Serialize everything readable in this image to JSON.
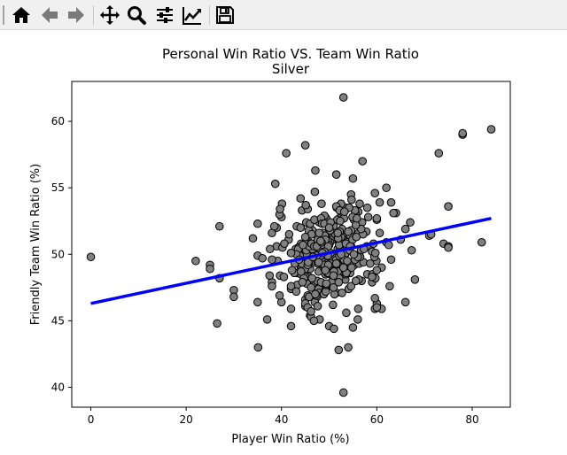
{
  "toolbar": {
    "buttons": [
      {
        "name": "home-button",
        "icon": "home-icon"
      },
      {
        "name": "back-button",
        "icon": "arrow-left-icon"
      },
      {
        "name": "forward-button",
        "icon": "arrow-right-icon"
      },
      {
        "name": "pan-button",
        "icon": "move-icon"
      },
      {
        "name": "zoom-button",
        "icon": "magnifier-icon"
      },
      {
        "name": "configure-subplots-button",
        "icon": "sliders-icon"
      },
      {
        "name": "edit-axis-button",
        "icon": "line-chart-icon"
      },
      {
        "name": "save-button",
        "icon": "floppy-disk-icon"
      }
    ]
  },
  "chart_data": {
    "type": "scatter",
    "title": "Personal Win Ratio VS. Team Win Ratio",
    "subtitle": "Silver",
    "xlabel": "Player Win Ratio (%)",
    "ylabel": "Friendly Team Win Ratio (%)",
    "xlim": [
      -4,
      88
    ],
    "ylim": [
      38.5,
      63
    ],
    "xticks": [
      "0",
      "20",
      "40",
      "60",
      "80"
    ],
    "yticks": [
      "40",
      "45",
      "50",
      "55",
      "60"
    ],
    "xtick_values": [
      0,
      20,
      40,
      60,
      80
    ],
    "ytick_values": [
      40,
      45,
      50,
      55,
      60
    ],
    "grid": false,
    "colors": {
      "marker_fill": "#808080",
      "marker_edge": "#000000",
      "fit_line": "#0000ff"
    },
    "fit_line": {
      "x": [
        0,
        84
      ],
      "y": [
        46.3,
        52.7
      ]
    },
    "outliers": [
      [
        0,
        49.8
      ],
      [
        22,
        49.5
      ],
      [
        25,
        49.2
      ],
      [
        25,
        48.9
      ],
      [
        27,
        48.2
      ],
      [
        27,
        52.1
      ],
      [
        30,
        47.3
      ],
      [
        30,
        46.8
      ],
      [
        34,
        51.2
      ],
      [
        35,
        52.3
      ],
      [
        35,
        49.9
      ],
      [
        35,
        46.4
      ],
      [
        36,
        49.7
      ],
      [
        37,
        45.1
      ],
      [
        38,
        51.6
      ],
      [
        38,
        47.9
      ],
      [
        38,
        47.6
      ],
      [
        39,
        50.6
      ],
      [
        40,
        52.8
      ],
      [
        40,
        46.4
      ],
      [
        41,
        57.6
      ],
      [
        42,
        44.6
      ],
      [
        42,
        45.9
      ],
      [
        45,
        58.2
      ],
      [
        44,
        54.2
      ],
      [
        45,
        46.6
      ],
      [
        45,
        46.1
      ],
      [
        46,
        45.4
      ],
      [
        48,
        45.1
      ],
      [
        50,
        44.6
      ],
      [
        51,
        44.4
      ],
      [
        52,
        42.8
      ],
      [
        53,
        39.6
      ],
      [
        53,
        61.8
      ],
      [
        54,
        43.0
      ],
      [
        55,
        44.5
      ],
      [
        56,
        45.1
      ],
      [
        55,
        55.7
      ],
      [
        57,
        57.0
      ],
      [
        58,
        53.5
      ],
      [
        60,
        46.3
      ],
      [
        61,
        45.9
      ],
      [
        62,
        55.0
      ],
      [
        63,
        53.9
      ],
      [
        64,
        53.1
      ],
      [
        66,
        46.4
      ],
      [
        67,
        52.4
      ],
      [
        68,
        48.1
      ],
      [
        71,
        51.4
      ],
      [
        73,
        57.6
      ],
      [
        74,
        50.8
      ],
      [
        75,
        50.6
      ],
      [
        75,
        50.5
      ],
      [
        75,
        53.6
      ],
      [
        78,
        59.0
      ],
      [
        78,
        59.1
      ],
      [
        82,
        50.9
      ],
      [
        84,
        59.4
      ],
      [
        62,
        50.9
      ],
      [
        63,
        49.6
      ],
      [
        65,
        51.1
      ],
      [
        66,
        51.9
      ],
      [
        60,
        52.6
      ],
      [
        61,
        49.0
      ],
      [
        59,
        47.9
      ],
      [
        58,
        48.5
      ]
    ],
    "cluster": {
      "count": 340,
      "x_mean": 50,
      "x_sd": 5.5,
      "y_mean": 50.1,
      "y_sd": 1.9,
      "seed": 7
    }
  }
}
